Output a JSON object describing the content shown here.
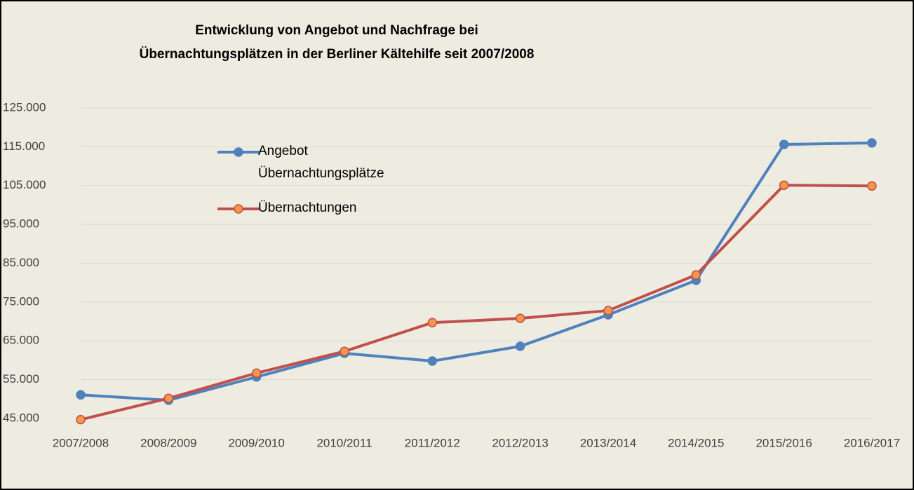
{
  "chart_data": {
    "type": "line",
    "title": [
      "Entwicklung  von Angebot und Nachfrage bei",
      "Übernachtungsplätzen in der Berliner Kältehilfe seit 2007/2008"
    ],
    "categories": [
      "2007/2008",
      "2008/2009",
      "2009/2010",
      "2010/2011",
      "2011/2012",
      "2012/2013",
      "2013/2014",
      "2014/2015",
      "2015/2016",
      "2016/2017"
    ],
    "series": [
      {
        "name": "Angebot Übernachtungsplätze",
        "color": "#4f81bd",
        "marker_fill": "#4f81bd",
        "values": [
          51100,
          49700,
          55700,
          61800,
          59800,
          63600,
          71700,
          80600,
          115600,
          116000
        ]
      },
      {
        "name": "Übernachtungen",
        "color": "#c0504d",
        "marker_fill": "#f79646",
        "values": [
          44700,
          50200,
          56700,
          62300,
          69700,
          70800,
          72800,
          82000,
          105100,
          104900
        ]
      }
    ],
    "ylim": [
      45000,
      125000
    ],
    "yticks": [
      {
        "value": 45000,
        "label": "45.000"
      },
      {
        "value": 55000,
        "label": "55.000"
      },
      {
        "value": 65000,
        "label": "65.000"
      },
      {
        "value": 75000,
        "label": "75.000"
      },
      {
        "value": 85000,
        "label": "85.000"
      },
      {
        "value": 95000,
        "label": "95.000"
      },
      {
        "value": 105000,
        "label": "105.000"
      },
      {
        "value": 115000,
        "label": "115.000"
      },
      {
        "value": 125000,
        "label": "125.000"
      }
    ],
    "grid": true,
    "legend": "upper left"
  }
}
